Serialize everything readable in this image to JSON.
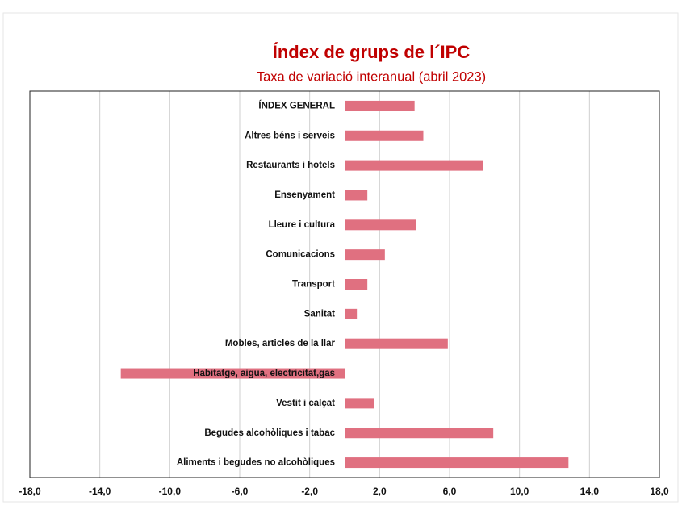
{
  "chart_data": {
    "type": "hbar",
    "title": "Índex de grups de l´IPC",
    "subtitle": "Taxa de variació interanual (abril 2023)",
    "categories": [
      "ÍNDEX GENERAL",
      "Altres béns i serveis",
      "Restaurants i hotels",
      "Ensenyament",
      "Lleure i cultura",
      "Comunicacions",
      "Transport",
      "Sanitat",
      "Mobles, articles de la llar",
      "Habitatge, aigua, electricitat,gas",
      "Vestit i calçat",
      "Begudes alcohòliques i tabac",
      "Aliments i begudes no alcohòliques"
    ],
    "values": [
      4.0,
      4.5,
      7.9,
      1.3,
      4.1,
      2.3,
      1.3,
      0.7,
      5.9,
      -12.8,
      1.7,
      8.5,
      12.8
    ],
    "color": "#e07080",
    "xlim": [
      -18,
      18
    ],
    "xticks": [
      {
        "value": -18,
        "label": "-18,0"
      },
      {
        "value": -14,
        "label": "-14,0"
      },
      {
        "value": -10,
        "label": "-10,0"
      },
      {
        "value": -6,
        "label": "-6,0"
      },
      {
        "value": -2,
        "label": "-2,0"
      },
      {
        "value": 2,
        "label": "2,0"
      },
      {
        "value": 6,
        "label": "6,0"
      },
      {
        "value": 10,
        "label": "10,0"
      },
      {
        "value": 14,
        "label": "14,0"
      },
      {
        "value": 18,
        "label": "18,0"
      }
    ],
    "grid": true
  }
}
